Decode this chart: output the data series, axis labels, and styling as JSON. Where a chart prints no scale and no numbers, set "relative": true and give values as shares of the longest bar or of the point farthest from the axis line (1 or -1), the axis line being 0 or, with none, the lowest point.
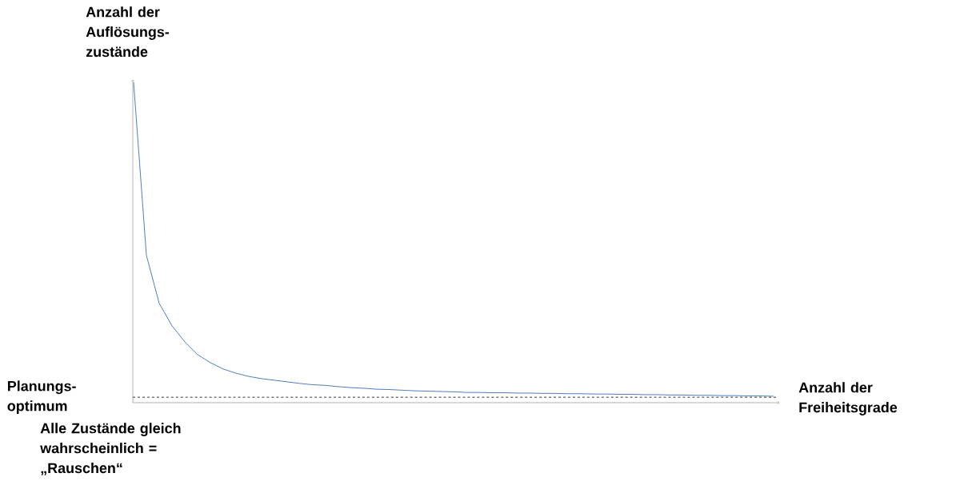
{
  "chart_data": {
    "type": "line",
    "relative": true,
    "ylabel": "Anzahl der Auflösungs-zustände",
    "xlabel": "Anzahl der Freiheitsgrade",
    "categories": [
      null,
      null,
      null,
      null,
      null,
      null,
      null,
      null,
      null,
      null,
      null,
      null,
      null,
      null,
      null,
      null,
      null,
      null,
      null,
      null,
      null,
      null,
      null,
      null,
      null,
      null,
      null,
      null,
      null,
      null,
      null,
      null,
      null,
      null,
      null,
      null,
      null,
      null,
      null,
      null,
      null,
      null,
      null,
      null,
      null,
      null,
      null,
      null,
      null,
      null,
      null
    ],
    "series": [
      {
        "color": "#4f81bd",
        "values": [
          1.0,
          0.46,
          0.31,
          0.24,
          0.19,
          0.15,
          0.125,
          0.105,
          0.092,
          0.082,
          0.075,
          0.07,
          0.065,
          0.06,
          0.056,
          0.054,
          0.05,
          0.047,
          0.045,
          0.042,
          0.041,
          0.039,
          0.037,
          0.036,
          0.035,
          0.034,
          0.032,
          0.032,
          0.031,
          0.031,
          0.03,
          0.03,
          0.029,
          0.029,
          0.028,
          0.028,
          0.027,
          0.027,
          0.026,
          0.026,
          0.025,
          0.025,
          0.024,
          0.024,
          0.023,
          0.023,
          0.022,
          0.022,
          0.021,
          0.021,
          0.02
        ]
      }
    ],
    "line_style": "solid",
    "ref_lines": [
      {
        "axis": "y",
        "value": 0.017,
        "label": "Planungs-optimum",
        "color": "#000000",
        "line_style": "dashed"
      }
    ],
    "annotations": [
      "Alle Zustände gleich wahrscheinlich = „Rauschen“"
    ]
  }
}
